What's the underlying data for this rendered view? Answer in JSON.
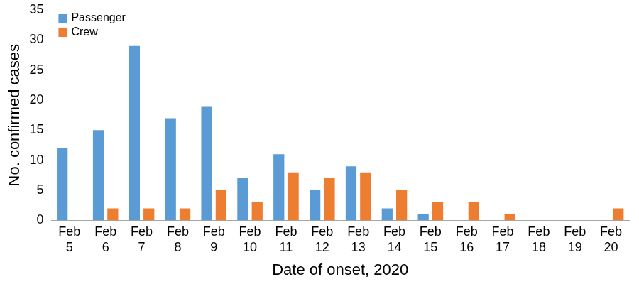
{
  "chart_data": {
    "type": "bar",
    "categories": [
      "Feb 5",
      "Feb 6",
      "Feb 7",
      "Feb 8",
      "Feb 9",
      "Feb 10",
      "Feb 11",
      "Feb 12",
      "Feb 13",
      "Feb 14",
      "Feb 15",
      "Feb 16",
      "Feb 17",
      "Feb 18",
      "Feb 19",
      "Feb 20"
    ],
    "series": [
      {
        "name": "Passenger",
        "color": "#5b9bd5",
        "values": [
          12,
          15,
          29,
          17,
          19,
          7,
          11,
          5,
          9,
          2,
          1,
          0,
          0,
          0,
          0,
          0
        ]
      },
      {
        "name": "Crew",
        "color": "#ed7d31",
        "values": [
          0,
          2,
          2,
          2,
          5,
          3,
          8,
          7,
          8,
          5,
          3,
          3,
          1,
          0,
          0,
          2
        ]
      }
    ],
    "x_label": "Date of onset, 2020",
    "y_label": "No. confirmed cases",
    "ylim": [
      0,
      35
    ],
    "yticks": [
      0,
      5,
      10,
      15,
      20,
      25,
      30,
      35
    ],
    "grid": false,
    "legend": "upper left"
  }
}
